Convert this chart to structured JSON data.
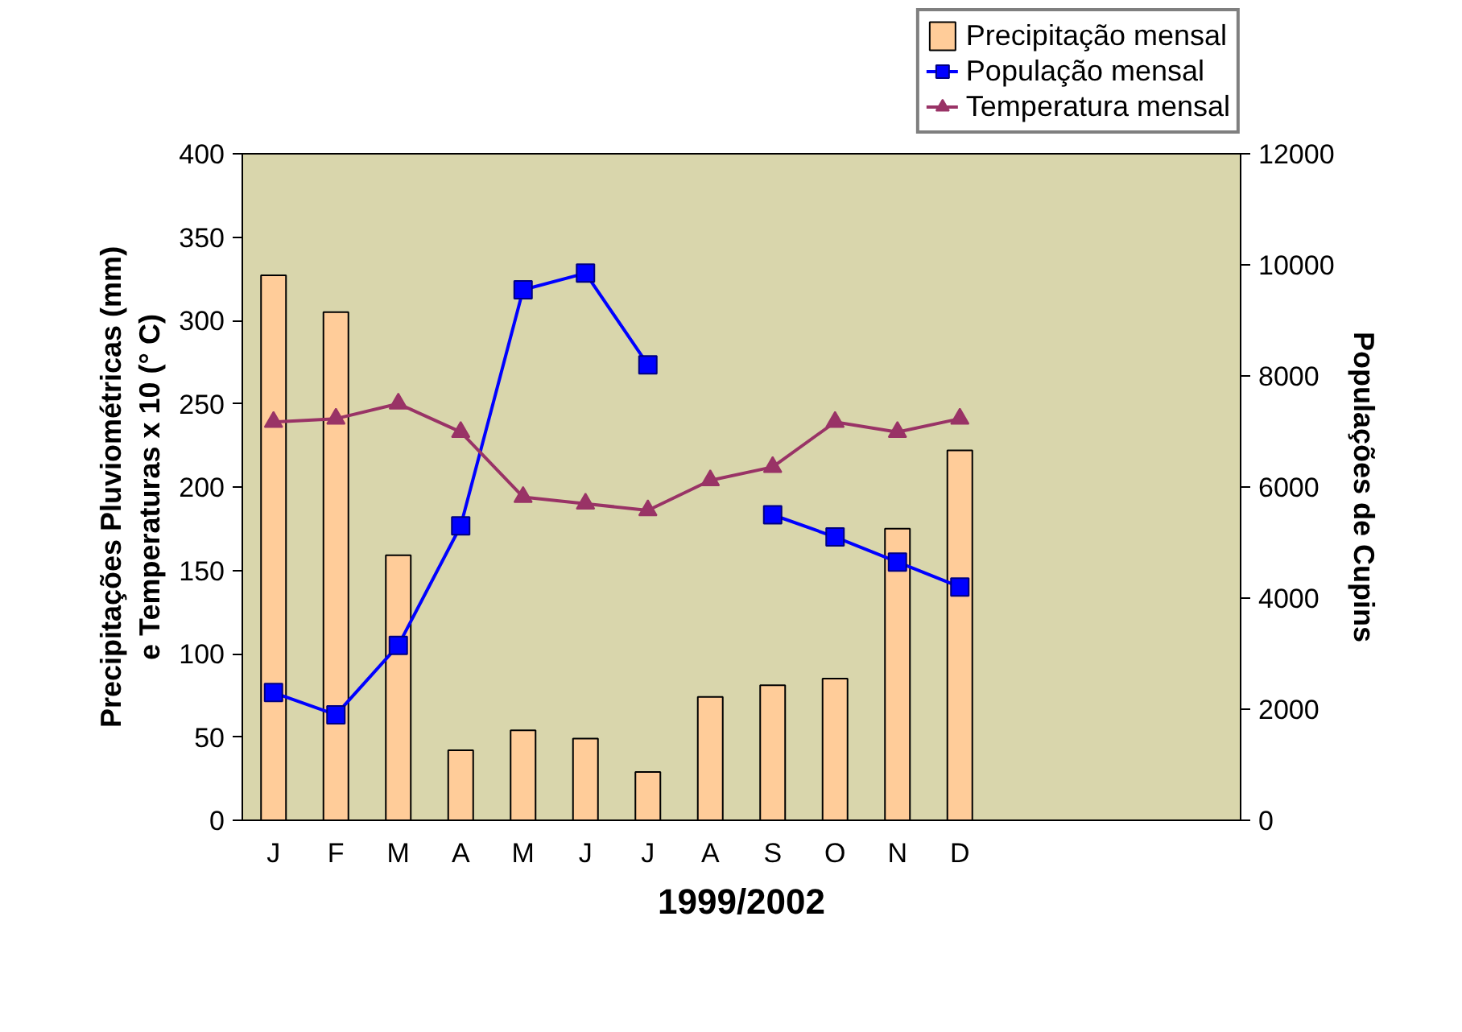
{
  "chart_data": {
    "type": "bar",
    "xlabel": "1999/2002",
    "ylabel": "Precipitações Pluviométricas (mm)\ne Temperaturas x 10 (° C)",
    "y2label": "Populações de Cupins",
    "categories": [
      "J",
      "F",
      "M",
      "A",
      "M",
      "J",
      "J",
      "A",
      "S",
      "O",
      "N",
      "D",
      null,
      null,
      null,
      null
    ],
    "ylim": [
      0,
      400
    ],
    "yticks": [
      0,
      50,
      100,
      150,
      200,
      250,
      300,
      350,
      400
    ],
    "y2lim": [
      0,
      12000
    ],
    "y2ticks": [
      0,
      2000,
      4000,
      6000,
      8000,
      10000,
      12000
    ],
    "grid": false,
    "legend": "top right",
    "series": [
      {
        "name": "Precipitação mensal",
        "color": "#ffcc99",
        "values": [
          327,
          305,
          159,
          42,
          54,
          49,
          29,
          74,
          81,
          85,
          175,
          222,
          null,
          null,
          null,
          null
        ]
      },
      {
        "name": "População mensal",
        "type": "line",
        "axis": "y2",
        "marker": "square",
        "color": "#0000ff",
        "values": [
          2300,
          1900,
          3150,
          5300,
          9550,
          9850,
          8200,
          null,
          5500,
          5100,
          4650,
          4200,
          null,
          null,
          null,
          null
        ]
      },
      {
        "name": "Temperatura mensal",
        "type": "line",
        "marker": "triangle",
        "color": "#993366",
        "values": [
          239,
          241,
          250,
          233,
          194,
          190,
          186,
          204,
          212,
          239,
          233,
          241,
          null,
          null,
          null,
          null
        ]
      }
    ]
  }
}
